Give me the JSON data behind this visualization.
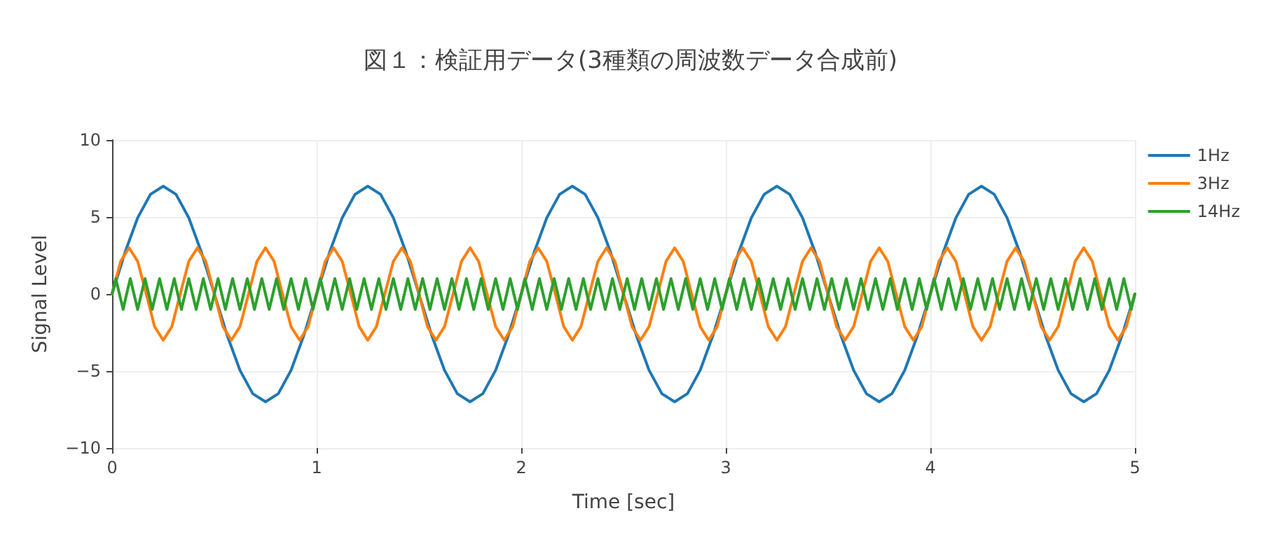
{
  "chart_data": {
    "type": "line",
    "title": "図１：検証用データ(3種類の周波数データ合成前)",
    "xlabel": "Time [sec]",
    "ylabel": "Signal Level",
    "xlim": [
      0,
      5
    ],
    "xticks": [
      0,
      1,
      2,
      3,
      4,
      5
    ],
    "ylim": [
      -10,
      10
    ],
    "yticks": [
      {
        "value": -10,
        "label": "−10"
      },
      {
        "value": -5,
        "label": "−5"
      },
      0,
      5,
      10
    ],
    "grid": true,
    "legend": "top right",
    "marker": "none",
    "line_style": "solid",
    "series": [
      {
        "name": "1Hz",
        "color": "#1f77b4",
        "x": [
          0,
          0.0625,
          0.125,
          0.1875,
          0.25,
          0.3125,
          0.375,
          0.4375,
          0.5,
          0.5625,
          0.625,
          0.6875,
          0.75,
          0.8125,
          0.875,
          0.9375,
          1,
          1.0625,
          1.125,
          1.1875,
          1.25,
          1.3125,
          1.375,
          1.4375,
          1.5,
          1.5625,
          1.625,
          1.6875,
          1.75,
          1.8125,
          1.875,
          1.9375,
          2,
          2.0625,
          2.125,
          2.1875,
          2.25,
          2.3125,
          2.375,
          2.4375,
          2.5,
          2.5625,
          2.625,
          2.6875,
          2.75,
          2.8125,
          2.875,
          2.9375,
          3,
          3.0625,
          3.125,
          3.1875,
          3.25,
          3.3125,
          3.375,
          3.4375,
          3.5,
          3.5625,
          3.625,
          3.6875,
          3.75,
          3.8125,
          3.875,
          3.9375,
          4,
          4.0625,
          4.125,
          4.1875,
          4.25,
          4.3125,
          4.375,
          4.4375,
          4.5,
          4.5625,
          4.625,
          4.6875,
          4.75,
          4.8125,
          4.875,
          4.9375,
          5
        ],
        "values": [
          0,
          2.68,
          4.95,
          6.47,
          7,
          6.47,
          4.95,
          2.68,
          0,
          -2.68,
          -4.95,
          -6.47,
          -7,
          -6.47,
          -4.95,
          -2.68,
          0,
          2.68,
          4.95,
          6.47,
          7,
          6.47,
          4.95,
          2.68,
          0,
          -2.68,
          -4.95,
          -6.47,
          -7,
          -6.47,
          -4.95,
          -2.68,
          0,
          2.68,
          4.95,
          6.47,
          7,
          6.47,
          4.95,
          2.68,
          0,
          -2.68,
          -4.95,
          -6.47,
          -7,
          -6.47,
          -4.95,
          -2.68,
          0,
          2.68,
          4.95,
          6.47,
          7,
          6.47,
          4.95,
          2.68,
          0,
          -2.68,
          -4.95,
          -6.47,
          -7,
          -6.47,
          -4.95,
          -2.68,
          0,
          2.68,
          4.95,
          6.47,
          7,
          6.47,
          4.95,
          2.68,
          0,
          -2.68,
          -4.95,
          -6.47,
          -7,
          -6.47,
          -4.95,
          -2.68,
          0
        ]
      },
      {
        "name": "3Hz",
        "color": "#ff7f0e",
        "x": [
          0,
          0.042,
          0.083,
          0.125,
          0.167,
          0.208,
          0.25,
          0.292,
          0.333,
          0.375,
          0.417,
          0.458,
          0.5,
          0.542,
          0.583,
          0.625,
          0.667,
          0.708,
          0.75,
          0.792,
          0.833,
          0.875,
          0.917,
          0.958,
          1,
          1.042,
          1.083,
          1.125,
          1.167,
          1.208,
          1.25,
          1.292,
          1.333,
          1.375,
          1.417,
          1.458,
          1.5,
          1.542,
          1.583,
          1.625,
          1.667,
          1.708,
          1.75,
          1.792,
          1.833,
          1.875,
          1.917,
          1.958,
          2,
          2.042,
          2.083,
          2.125,
          2.167,
          2.208,
          2.25,
          2.292,
          2.333,
          2.375,
          2.417,
          2.458,
          2.5,
          2.542,
          2.583,
          2.625,
          2.667,
          2.708,
          2.75,
          2.792,
          2.833,
          2.875,
          2.917,
          2.958,
          3,
          3.042,
          3.083,
          3.125,
          3.167,
          3.208,
          3.25,
          3.292,
          3.333,
          3.375,
          3.417,
          3.458,
          3.5,
          3.542,
          3.583,
          3.625,
          3.667,
          3.708,
          3.75,
          3.792,
          3.833,
          3.875,
          3.917,
          3.958,
          4,
          4.042,
          4.083,
          4.125,
          4.167,
          4.208,
          4.25,
          4.292,
          4.333,
          4.375,
          4.417,
          4.458,
          4.5,
          4.542,
          4.583,
          4.625,
          4.667,
          4.708,
          4.75,
          4.792,
          4.833,
          4.875,
          4.917,
          4.958,
          5
        ],
        "values": [
          0,
          2.12,
          3,
          2.12,
          0,
          -2.12,
          -3,
          -2.12,
          0,
          2.12,
          3,
          2.12,
          0,
          -2.12,
          -3,
          -2.12,
          0,
          2.12,
          3,
          2.12,
          0,
          -2.12,
          -3,
          -2.12,
          0,
          2.12,
          3,
          2.12,
          0,
          -2.12,
          -3,
          -2.12,
          0,
          2.12,
          3,
          2.12,
          0,
          -2.12,
          -3,
          -2.12,
          0,
          2.12,
          3,
          2.12,
          0,
          -2.12,
          -3,
          -2.12,
          0,
          2.12,
          3,
          2.12,
          0,
          -2.12,
          -3,
          -2.12,
          0,
          2.12,
          3,
          2.12,
          0,
          -2.12,
          -3,
          -2.12,
          0,
          2.12,
          3,
          2.12,
          0,
          -2.12,
          -3,
          -2.12,
          0,
          2.12,
          3,
          2.12,
          0,
          -2.12,
          -3,
          -2.12,
          0,
          2.12,
          3,
          2.12,
          0,
          -2.12,
          -3,
          -2.12,
          0,
          2.12,
          3,
          2.12,
          0,
          -2.12,
          -3,
          -2.12,
          0,
          2.12,
          3,
          2.12,
          0,
          -2.12,
          -3,
          -2.12,
          0,
          2.12,
          3,
          2.12,
          0,
          -2.12,
          -3,
          -2.12,
          0,
          2.12,
          3,
          2.12,
          0,
          -2.12,
          -3,
          -2.12,
          0
        ]
      },
      {
        "name": "14Hz",
        "color": "#2ca02c",
        "x": [
          0,
          0.018,
          0.036,
          0.054,
          0.071,
          0.089,
          0.107,
          0.125,
          0.143,
          0.161,
          0.179,
          0.196,
          0.214,
          0.232,
          0.25,
          0.268,
          0.286,
          0.304,
          0.321,
          0.339,
          0.357,
          0.375,
          0.393,
          0.411,
          0.429,
          0.446,
          0.464,
          0.482,
          0.5,
          0.518,
          0.536,
          0.554,
          0.571,
          0.589,
          0.607,
          0.625,
          0.643,
          0.661,
          0.679,
          0.696,
          0.714,
          0.732,
          0.75,
          0.768,
          0.786,
          0.804,
          0.821,
          0.839,
          0.857,
          0.875,
          0.893,
          0.911,
          0.929,
          0.946,
          0.964,
          0.982,
          1,
          1.018,
          1.036,
          1.054,
          1.071,
          1.089,
          1.107,
          1.125,
          1.143,
          1.161,
          1.179,
          1.196,
          1.214,
          1.232,
          1.25,
          1.268,
          1.286,
          1.304,
          1.321,
          1.339,
          1.357,
          1.375,
          1.393,
          1.411,
          1.429,
          1.446,
          1.464,
          1.482,
          1.5,
          1.518,
          1.536,
          1.554,
          1.571,
          1.589,
          1.607,
          1.625,
          1.643,
          1.661,
          1.679,
          1.696,
          1.714,
          1.732,
          1.75,
          1.768,
          1.786,
          1.804,
          1.821,
          1.839,
          1.857,
          1.875,
          1.893,
          1.911,
          1.929,
          1.946,
          1.964,
          1.982,
          2,
          2.018,
          2.036,
          2.054,
          2.071,
          2.089,
          2.107,
          2.125,
          2.143,
          2.161,
          2.179,
          2.196,
          2.214,
          2.232,
          2.25,
          2.268,
          2.286,
          2.304,
          2.321,
          2.339,
          2.357,
          2.375,
          2.393,
          2.411,
          2.429,
          2.446,
          2.464,
          2.482,
          2.5,
          2.518,
          2.536,
          2.554,
          2.571,
          2.589,
          2.607,
          2.625,
          2.643,
          2.661,
          2.679,
          2.696,
          2.714,
          2.732,
          2.75,
          2.768,
          2.786,
          2.804,
          2.821,
          2.839,
          2.857,
          2.875,
          2.893,
          2.911,
          2.929,
          2.946,
          2.964,
          2.982,
          3,
          3.018,
          3.036,
          3.054,
          3.071,
          3.089,
          3.107,
          3.125,
          3.143,
          3.161,
          3.179,
          3.196,
          3.214,
          3.232,
          3.25,
          3.268,
          3.286,
          3.304,
          3.321,
          3.339,
          3.357,
          3.375,
          3.393,
          3.411,
          3.429,
          3.446,
          3.464,
          3.482,
          3.5,
          3.518,
          3.536,
          3.554,
          3.571,
          3.589,
          3.607,
          3.625,
          3.643,
          3.661,
          3.679,
          3.696,
          3.714,
          3.732,
          3.75,
          3.768,
          3.786,
          3.804,
          3.821,
          3.839,
          3.857,
          3.875,
          3.893,
          3.911,
          3.929,
          3.946,
          3.964,
          3.982,
          4,
          4.018,
          4.036,
          4.054,
          4.071,
          4.089,
          4.107,
          4.125,
          4.143,
          4.161,
          4.179,
          4.196,
          4.214,
          4.232,
          4.25,
          4.268,
          4.286,
          4.304,
          4.321,
          4.339,
          4.357,
          4.375,
          4.393,
          4.411,
          4.429,
          4.446,
          4.464,
          4.482,
          4.5,
          4.518,
          4.536,
          4.554,
          4.571,
          4.589,
          4.607,
          4.625,
          4.643,
          4.661,
          4.679,
          4.696,
          4.714,
          4.732,
          4.75,
          4.768,
          4.786,
          4.804,
          4.821,
          4.839,
          4.857,
          4.875,
          4.893,
          4.911,
          4.929,
          4.946,
          4.964,
          4.982,
          5
        ],
        "values": [
          0,
          1,
          0,
          -1,
          0,
          1,
          0,
          -1,
          0,
          1,
          0,
          -1,
          0,
          1,
          0,
          -1,
          0,
          1,
          0,
          -1,
          0,
          1,
          0,
          -1,
          0,
          1,
          0,
          -1,
          0,
          1,
          0,
          -1,
          0,
          1,
          0,
          -1,
          0,
          1,
          0,
          -1,
          0,
          1,
          0,
          -1,
          0,
          1,
          0,
          -1,
          0,
          1,
          0,
          -1,
          0,
          1,
          0,
          -1,
          0,
          1,
          0,
          -1,
          0,
          1,
          0,
          -1,
          0,
          1,
          0,
          -1,
          0,
          1,
          0,
          -1,
          0,
          1,
          0,
          -1,
          0,
          1,
          0,
          -1,
          0,
          1,
          0,
          -1,
          0,
          1,
          0,
          -1,
          0,
          1,
          0,
          -1,
          0,
          1,
          0,
          -1,
          0,
          1,
          0,
          -1,
          0,
          1,
          0,
          -1,
          0,
          1,
          0,
          -1,
          0,
          1,
          0,
          -1,
          0,
          1,
          0,
          -1,
          0,
          1,
          0,
          -1,
          0,
          1,
          0,
          -1,
          0,
          1,
          0,
          -1,
          0,
          1,
          0,
          -1,
          0,
          1,
          0,
          -1,
          0,
          1,
          0,
          -1,
          0,
          1,
          0,
          -1,
          0,
          1,
          0,
          -1,
          0,
          1,
          0,
          -1,
          0,
          1,
          0,
          -1,
          0,
          1,
          0,
          -1,
          0,
          1,
          0,
          -1,
          0,
          1,
          0,
          -1,
          0,
          1,
          0,
          -1,
          0,
          1,
          0,
          -1,
          0,
          1,
          0,
          -1,
          0,
          1,
          0,
          -1,
          0,
          1,
          0,
          -1,
          0,
          1,
          0,
          -1,
          0,
          1,
          0,
          -1,
          0,
          1,
          0,
          -1,
          0,
          1,
          0,
          -1,
          0,
          1,
          0,
          -1,
          0,
          1,
          0,
          -1,
          0,
          1,
          0,
          -1,
          0,
          1,
          0,
          -1,
          0,
          1,
          0,
          -1,
          0,
          1,
          0,
          -1,
          0,
          1,
          0,
          -1,
          0,
          1,
          0,
          -1,
          0,
          1,
          0,
          -1,
          0,
          1,
          0,
          -1,
          0,
          1,
          0,
          -1,
          0,
          1,
          0,
          -1,
          0,
          1,
          0,
          -1,
          0,
          1,
          0,
          -1,
          0,
          1,
          0,
          -1,
          0,
          1,
          0,
          -1,
          0,
          1,
          0,
          -1,
          0,
          1,
          0,
          -1,
          0,
          1,
          0,
          -1,
          0
        ]
      }
    ]
  }
}
